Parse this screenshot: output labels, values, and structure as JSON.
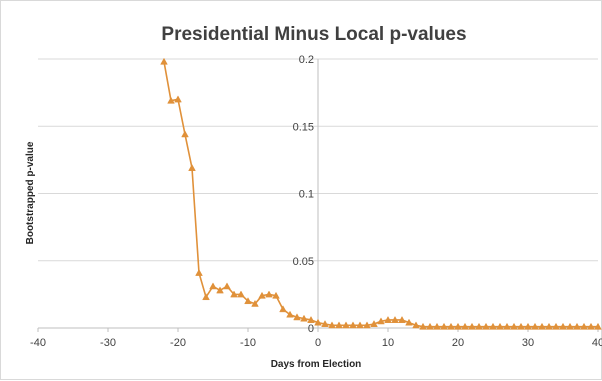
{
  "chart_data": {
    "type": "line",
    "title": "Presidential Minus Local p-values",
    "xlabel": "Days from Election",
    "ylabel": "Bootstrapped p-value",
    "xlim": [
      -40,
      40
    ],
    "ylim": [
      0,
      0.2
    ],
    "x_ticks": [
      -40,
      -30,
      -20,
      -10,
      0,
      10,
      20,
      30,
      40
    ],
    "x_tick_labels": [
      "-40",
      "-30",
      "-20",
      "-10",
      "0",
      "10",
      "20",
      "30",
      "40"
    ],
    "y_ticks": [
      0,
      0.05,
      0.1,
      0.15,
      0.2
    ],
    "y_tick_labels": [
      "0",
      "0.05",
      "0.1",
      "0.15",
      "0.2"
    ],
    "grid": "horizontal",
    "legend": "none",
    "marker": "triangle",
    "color": "#e0913a",
    "series": [
      {
        "x": [
          -22,
          -21,
          -20,
          -19,
          -18,
          -17,
          -16,
          -15,
          -14,
          -13,
          -12,
          -11,
          -10,
          -9,
          -8,
          -7,
          -6,
          -5,
          -4,
          -3,
          -2,
          -1,
          0,
          1,
          2,
          3,
          4,
          5,
          6,
          7,
          8,
          9,
          10,
          11,
          12,
          13,
          14,
          15,
          16,
          17,
          18,
          19,
          20,
          21,
          22,
          23,
          24,
          25,
          26,
          27,
          28,
          29,
          30,
          31,
          32,
          33,
          34,
          35,
          36,
          37,
          38,
          39,
          40
        ],
        "y": [
          0.198,
          0.169,
          0.17,
          0.144,
          0.119,
          0.041,
          0.023,
          0.031,
          0.028,
          0.031,
          0.025,
          0.025,
          0.02,
          0.018,
          0.024,
          0.025,
          0.024,
          0.014,
          0.01,
          0.008,
          0.007,
          0.006,
          0.004,
          0.003,
          0.002,
          0.002,
          0.002,
          0.002,
          0.002,
          0.002,
          0.003,
          0.005,
          0.006,
          0.006,
          0.006,
          0.004,
          0.002,
          0.001,
          0.001,
          0.001,
          0.001,
          0.001,
          0.001,
          0.001,
          0.001,
          0.001,
          0.001,
          0.001,
          0.001,
          0.001,
          0.001,
          0.001,
          0.001,
          0.001,
          0.001,
          0.001,
          0.001,
          0.001,
          0.001,
          0.001,
          0.001,
          0.001,
          0.001
        ]
      }
    ]
  }
}
